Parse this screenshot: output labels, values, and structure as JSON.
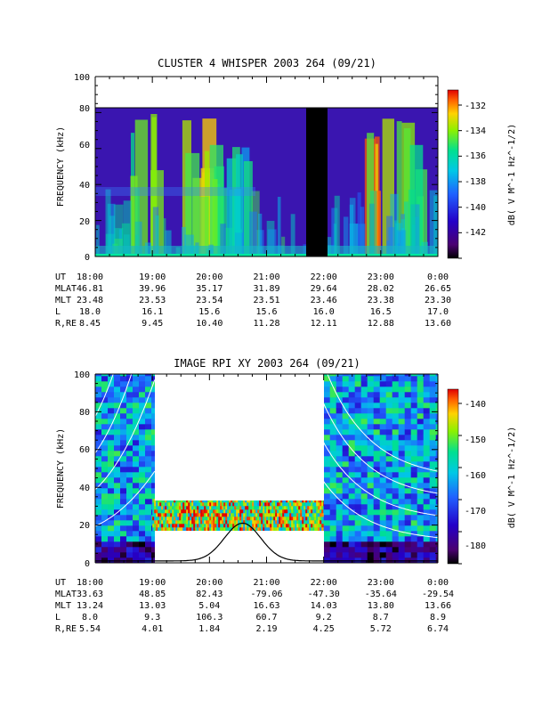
{
  "charts": [
    {
      "title": "CLUSTER 4 WHISPER 2003 264 (09/21)",
      "ylabel": "FREQUENCY (kHz)",
      "cbar_label": "dB( V M^-1 Hz^-1/2)",
      "y_ticks": [
        "0",
        "20",
        "40",
        "60",
        "80",
        "100"
      ],
      "cbar_ticks": [
        "-132",
        "-134",
        "-136",
        "-138",
        "-140",
        "-142"
      ],
      "ephemeris": [
        {
          "label": "UT",
          "values": [
            "18:00",
            "19:00",
            "20:00",
            "21:00",
            "22:00",
            "23:00",
            "0:00"
          ]
        },
        {
          "label": "MLAT",
          "values": [
            "46.81",
            "39.96",
            "35.17",
            "31.89",
            "29.64",
            "28.02",
            "26.65"
          ]
        },
        {
          "label": "MLT",
          "values": [
            "23.48",
            "23.53",
            "23.54",
            "23.51",
            "23.46",
            "23.38",
            "23.30"
          ]
        },
        {
          "label": "L",
          "values": [
            "18.0",
            "16.1",
            "15.6",
            "15.6",
            "16.0",
            "16.5",
            "17.0"
          ]
        },
        {
          "label": "R,RE",
          "values": [
            "8.45",
            "9.45",
            "10.40",
            "11.28",
            "12.11",
            "12.88",
            "13.60"
          ]
        }
      ]
    },
    {
      "title": "IMAGE RPI XY 2003 264 (09/21)",
      "ylabel": "FREQUENCY (kHz)",
      "cbar_label": "dB( V M^-1 Hz^-1/2)",
      "y_ticks": [
        "0",
        "20",
        "40",
        "60",
        "80",
        "100"
      ],
      "cbar_ticks": [
        "-140",
        "-150",
        "-160",
        "-170",
        "-180"
      ],
      "ephemeris": [
        {
          "label": "UT",
          "values": [
            "18:00",
            "19:00",
            "20:00",
            "21:00",
            "22:00",
            "23:00",
            "0:00"
          ]
        },
        {
          "label": "MLAT",
          "values": [
            "33.63",
            "48.85",
            "82.43",
            "-79.06",
            "-47.30",
            "-35.64",
            "-29.54"
          ]
        },
        {
          "label": "MLT",
          "values": [
            "13.24",
            "13.03",
            "5.04",
            "16.63",
            "14.03",
            "13.80",
            "13.66"
          ]
        },
        {
          "label": "L",
          "values": [
            "8.0",
            "9.3",
            "106.3",
            "60.7",
            "9.2",
            "8.7",
            "8.9"
          ]
        },
        {
          "label": "R,RE",
          "values": [
            "5.54",
            "4.01",
            "1.84",
            "2.19",
            "4.25",
            "5.72",
            "6.74"
          ]
        }
      ]
    }
  ],
  "colors": {
    "axis": "#000000",
    "curve_white": "#ffffff",
    "curve_black": "#000000"
  },
  "chart_data": [
    {
      "type": "heatmap",
      "title": "CLUSTER 4 WHISPER 2003 264 (09/21)",
      "xlabel": "UT",
      "ylabel": "FREQUENCY (kHz)",
      "x_range": [
        "18:00",
        "0:00"
      ],
      "ylim": [
        0,
        100
      ],
      "data_top_khz": 80,
      "colorbar": {
        "label": "dB( V M^-1 Hz^-1/2)",
        "range": [
          -143.5,
          -131.5
        ],
        "ticks": [
          -132,
          -134,
          -136,
          -138,
          -140,
          -142
        ]
      },
      "data_gap_ut": [
        "21:43",
        "22:03"
      ],
      "emission_bursts": [
        {
          "ut": "18:50",
          "intensity": -134,
          "top_khz": 80
        },
        {
          "ut": "19:40",
          "intensity": -133,
          "top_khz": 80
        },
        {
          "ut": "20:05",
          "intensity": -134,
          "top_khz": 80
        },
        {
          "ut": "20:30",
          "intensity": -135,
          "top_khz": 65
        },
        {
          "ut": "22:55",
          "intensity": -132,
          "top_khz": 80
        },
        {
          "ut": "23:30",
          "intensity": -133,
          "top_khz": 80
        }
      ]
    },
    {
      "type": "heatmap",
      "title": "IMAGE RPI XY 2003 264 (09/21)",
      "xlabel": "UT",
      "ylabel": "FREQUENCY (kHz)",
      "x_range": [
        "18:00",
        "0:00"
      ],
      "ylim": [
        0,
        100
      ],
      "colorbar": {
        "label": "dB( V M^-1 Hz^-1/2)",
        "range": [
          -185,
          -136
        ],
        "ticks": [
          -140,
          -150,
          -160,
          -170,
          -180
        ]
      },
      "coverage": [
        {
          "ut_start": "18:00",
          "ut_end": "19:00",
          "khz": [
            0,
            100
          ]
        },
        {
          "ut_start": "19:00",
          "ut_end": "22:00",
          "khz": [
            17,
            33
          ]
        },
        {
          "ut_start": "22:00",
          "ut_end": "0:00",
          "khz": [
            0,
            100
          ]
        }
      ],
      "overlay_curves": "white gyroharmonic curves rising toward perigee; black plasma-frequency peak ~21 kHz near 20:35 UT"
    }
  ]
}
